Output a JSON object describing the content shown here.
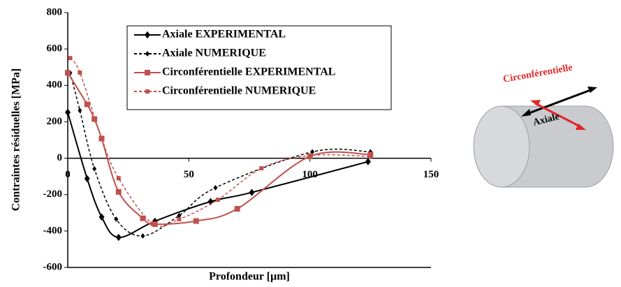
{
  "chart_data": {
    "type": "line",
    "xlabel": "Profondeur [µm]",
    "ylabel": "Contraintes résiduelles [MPa]",
    "xlim": [
      0,
      150
    ],
    "xticks": [
      0,
      50,
      100,
      150
    ],
    "ylim": [
      -600,
      800
    ],
    "yticks": [
      -600,
      -400,
      -200,
      0,
      200,
      400,
      600,
      800
    ],
    "grid": false,
    "smooth": true,
    "series": [
      {
        "name": "Axiale EXPERIMENTAL",
        "color": "#000000",
        "marker": "diamond",
        "dashed": false,
        "x": [
          0,
          8,
          14,
          21,
          36,
          59,
          76,
          124
        ],
        "values": [
          252,
          -112,
          -323,
          -435,
          -346,
          -238,
          -188,
          -19
        ]
      },
      {
        "name": "Axiale NUMERIQUE",
        "color": "#000000",
        "marker": "diamond",
        "dashed": true,
        "x": [
          1,
          5,
          11,
          20,
          31,
          46,
          61,
          101,
          125
        ],
        "values": [
          469,
          262,
          -58,
          -335,
          -427,
          -315,
          -162,
          35,
          35
        ]
      },
      {
        "name": "Circonférentielle EXPERIMENTAL",
        "color": "#c0504d",
        "marker": "square",
        "dashed": false,
        "x": [
          0,
          8,
          11,
          14,
          21,
          31,
          36,
          53,
          70,
          100,
          125
        ],
        "values": [
          469,
          296,
          215,
          108,
          -185,
          -330,
          -362,
          -345,
          -278,
          10,
          20
        ]
      },
      {
        "name": "Circonférentielle NUMERIQUE",
        "color": "#c0504d",
        "marker": "square",
        "dashed": true,
        "x": [
          1,
          5,
          14,
          21,
          35,
          46,
          62,
          80,
          100,
          125
        ],
        "values": [
          550,
          470,
          108,
          -110,
          -360,
          -335,
          -228,
          -55,
          15,
          10
        ]
      }
    ],
    "annotations": [
      "Circonférentielle",
      "Axiale"
    ]
  }
}
